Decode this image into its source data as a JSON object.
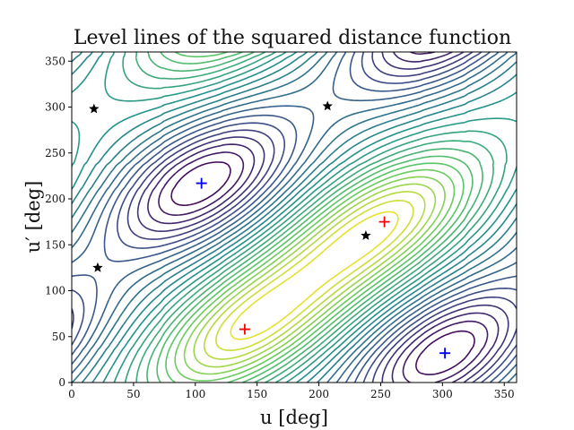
{
  "chart_data": {
    "type": "contour",
    "title": "Level lines of the squared distance function",
    "xlabel": "u [deg]",
    "ylabel": "u′ [deg]",
    "xlim": [
      0,
      360
    ],
    "ylim": [
      0,
      360
    ],
    "xticks": [
      "0",
      "50",
      "100",
      "150",
      "200",
      "250",
      "300",
      "350"
    ],
    "yticks": [
      "0",
      "50",
      "100",
      "150",
      "200",
      "250",
      "300",
      "350"
    ],
    "grid": false,
    "legend": "none",
    "colormap": "viridis",
    "colormap_stops": [
      "#440154",
      "#3b528b",
      "#21918c",
      "#5ec962",
      "#fde725"
    ],
    "markers": {
      "minima": {
        "symbol": "plus",
        "color": "#0000ff",
        "points": [
          {
            "x": 105,
            "y": 217
          },
          {
            "x": 302,
            "y": 32
          }
        ]
      },
      "maxima": {
        "symbol": "plus",
        "color": "#ff0000",
        "points": [
          {
            "x": 140,
            "y": 58
          },
          {
            "x": 253,
            "y": 175
          }
        ]
      },
      "saddles": {
        "symbol": "star",
        "color": "#000000",
        "points": [
          {
            "x": 18,
            "y": 298
          },
          {
            "x": 207,
            "y": 301
          },
          {
            "x": 238,
            "y": 160
          },
          {
            "x": 21,
            "y": 125
          }
        ]
      }
    }
  }
}
